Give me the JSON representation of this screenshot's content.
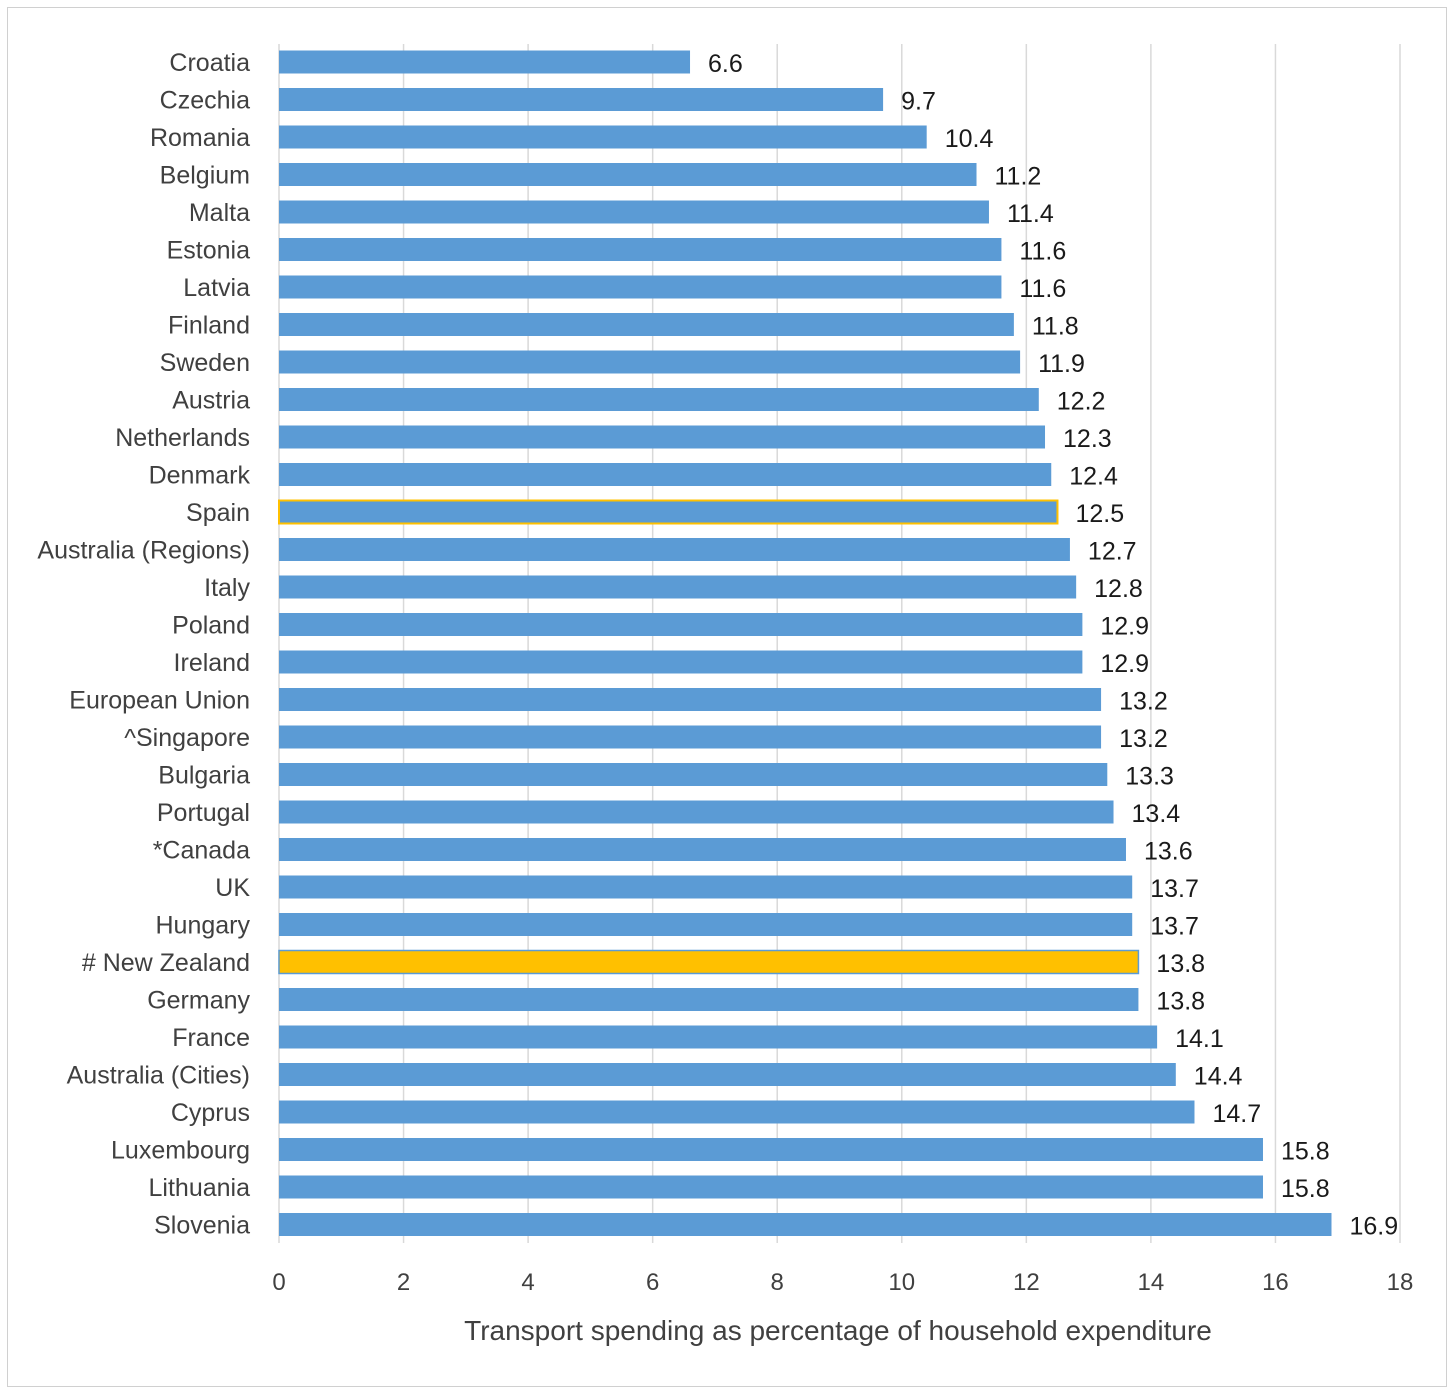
{
  "chart_data": {
    "type": "bar",
    "orientation": "horizontal",
    "title": "",
    "xlabel": "Transport spending as percentage of household expenditure",
    "ylabel": "",
    "xlim": [
      0,
      18
    ],
    "xticks": [
      0,
      2,
      4,
      6,
      8,
      10,
      12,
      14,
      16,
      18
    ],
    "grid": "vertical",
    "legend": "none",
    "colors": {
      "bar": "#5b9bd5",
      "highlight_new_zealand": "#ffc000",
      "highlight_outline": "#ffc000",
      "grid": "#d9d9d9"
    },
    "categories": [
      "Croatia",
      "Czechia",
      "Romania",
      "Belgium",
      "Malta",
      "Estonia",
      "Latvia",
      "Finland",
      "Sweden",
      "Austria",
      "Netherlands",
      "Denmark",
      "Spain",
      "Australia (Regions)",
      "Italy",
      "Poland",
      "Ireland",
      "European Union",
      "^Singapore",
      "Bulgaria",
      "Portugal",
      "*Canada",
      "UK",
      "Hungary",
      "# New Zealand",
      "Germany",
      "France",
      "Australia (Cities)",
      "Cyprus",
      "Luxembourg",
      "Lithuania",
      "Slovenia"
    ],
    "values": [
      6.6,
      9.7,
      10.4,
      11.2,
      11.4,
      11.6,
      11.6,
      11.8,
      11.9,
      12.2,
      12.3,
      12.4,
      12.5,
      12.7,
      12.8,
      12.9,
      12.9,
      13.2,
      13.2,
      13.3,
      13.4,
      13.6,
      13.7,
      13.7,
      13.8,
      13.8,
      14.1,
      14.4,
      14.7,
      15.8,
      15.8,
      16.9
    ],
    "value_labels": [
      "6.6",
      "9.7",
      "10.4",
      "11.2",
      "11.4",
      "11.6",
      "11.6",
      "11.8",
      "11.9",
      "12.2",
      "12.3",
      "12.4",
      "12.5",
      "12.7",
      "12.8",
      "12.9",
      "12.9",
      "13.2",
      "13.2",
      "13.3",
      "13.4",
      "13.6",
      "13.7",
      "13.7",
      "13.8",
      "13.8",
      "14.1",
      "14.4",
      "14.7",
      "15.8",
      "15.8",
      "16.9"
    ],
    "highlighted": {
      "# New Zealand": "fill",
      "Spain": "outline"
    }
  }
}
